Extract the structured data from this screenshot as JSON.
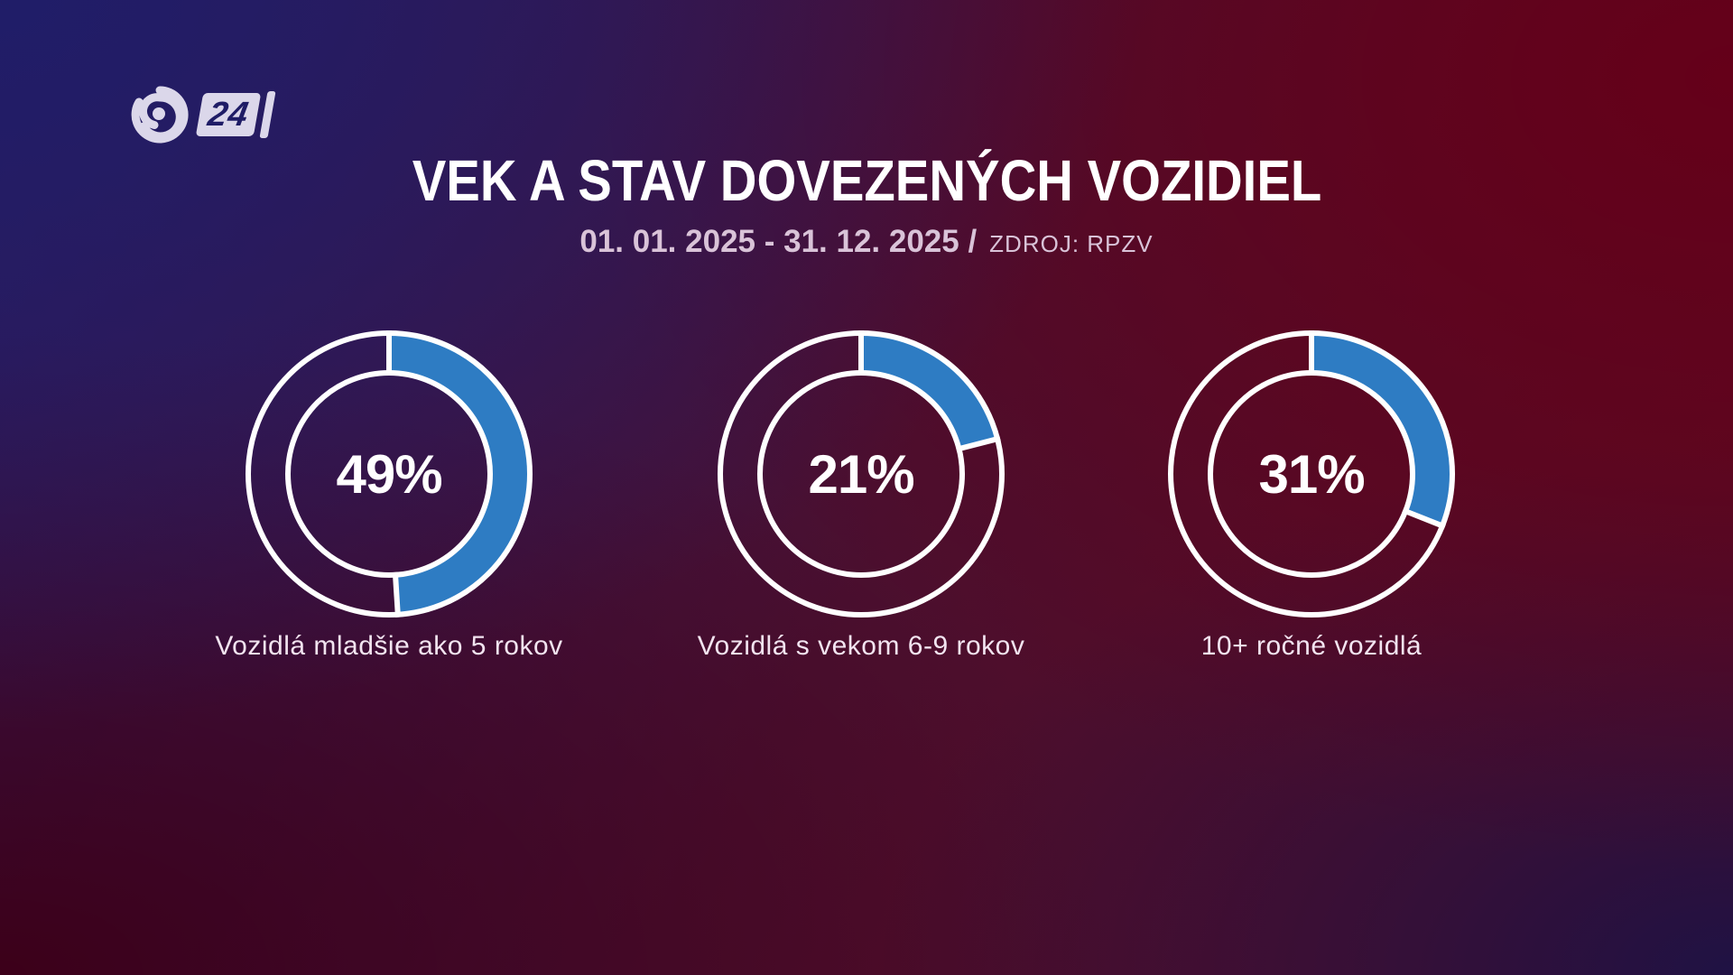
{
  "logo": {
    "number": "24"
  },
  "header": {
    "title": "VEK A STAV DOVEZENÝCH VOZIDIEL",
    "period": "01. 01. 2025 - 31. 12. 2025 /",
    "source": "ZDROJ: RPZV"
  },
  "colors": {
    "arc_blue": "#2e7cc3",
    "ring_white": "#ffffff",
    "title_text": "#ffffff",
    "subtitle_text": "#d9c3d8",
    "label_text": "#f2e4f0",
    "logo_light": "#dbd7ea",
    "logo_digits": "#1f1c66",
    "bg_top_left": "#201d68",
    "bg_right": "#650019",
    "bg_bottom_left": "#3c0019",
    "bg_bottom_right": "#1f1244"
  },
  "chart_data": [
    {
      "type": "pie",
      "variant": "donut",
      "label": "Vozidlá mladšie ako 5 rokov",
      "value_pct": 49,
      "display": "49%",
      "start_angle_deg": 0,
      "direction": "clockwise",
      "segments": [
        {
          "name": "filled",
          "value": 49,
          "color": "#2e7cc3"
        },
        {
          "name": "remainder",
          "value": 51,
          "color": "transparent"
        }
      ]
    },
    {
      "type": "pie",
      "variant": "donut",
      "label": "Vozidlá s vekom 6-9 rokov",
      "value_pct": 21,
      "display": "21%",
      "start_angle_deg": 0,
      "direction": "clockwise",
      "segments": [
        {
          "name": "filled",
          "value": 21,
          "color": "#2e7cc3"
        },
        {
          "name": "remainder",
          "value": 79,
          "color": "transparent"
        }
      ]
    },
    {
      "type": "pie",
      "variant": "donut",
      "label": "10+ ročné vozidlá",
      "value_pct": 31,
      "display": "31%",
      "start_angle_deg": 0,
      "direction": "clockwise",
      "segments": [
        {
          "name": "filled",
          "value": 31,
          "color": "#2e7cc3"
        },
        {
          "name": "remainder",
          "value": 69,
          "color": "transparent"
        }
      ]
    }
  ]
}
